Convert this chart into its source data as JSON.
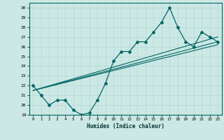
{
  "xlabel": "Humidex (Indice chaleur)",
  "bg_color": "#cce8e4",
  "line_color": "#006666",
  "grid_color": "#b0d8d4",
  "xlim": [
    -0.5,
    23.5
  ],
  "ylim": [
    19,
    30.5
  ],
  "yticks": [
    19,
    20,
    21,
    22,
    23,
    24,
    25,
    26,
    27,
    28,
    29,
    30
  ],
  "xticks": [
    0,
    1,
    2,
    3,
    4,
    5,
    6,
    7,
    8,
    9,
    10,
    11,
    12,
    13,
    14,
    15,
    16,
    17,
    18,
    19,
    20,
    21,
    22,
    23
  ],
  "main_line_x": [
    0,
    1,
    2,
    3,
    4,
    5,
    6,
    7,
    8,
    9,
    10,
    11,
    12,
    13,
    14,
    15,
    16,
    17,
    18,
    19,
    20,
    21,
    22,
    23
  ],
  "main_line_y": [
    22.0,
    21.0,
    20.0,
    20.5,
    20.5,
    19.5,
    19.0,
    19.2,
    20.5,
    22.2,
    24.5,
    25.5,
    25.5,
    26.5,
    26.5,
    27.5,
    28.5,
    30.0,
    28.0,
    26.5,
    26.0,
    27.5,
    27.0,
    26.5
  ],
  "trend_lines": [
    {
      "x0": 0,
      "y0": 21.5,
      "x1": 23,
      "y1": 27.0
    },
    {
      "x0": 0,
      "y0": 21.5,
      "x1": 23,
      "y1": 26.5
    },
    {
      "x0": 0,
      "y0": 21.5,
      "x1": 23,
      "y1": 26.2
    }
  ]
}
